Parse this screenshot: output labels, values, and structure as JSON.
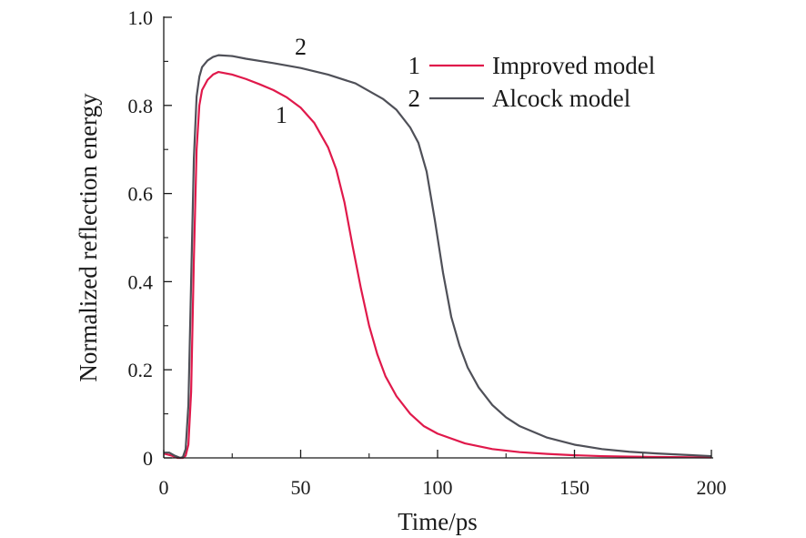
{
  "chart_data": {
    "type": "line",
    "xlabel": "Time/ps",
    "ylabel": "Normalized reflection energy",
    "xlim": [
      0,
      200
    ],
    "ylim": [
      0,
      1.0
    ],
    "x_ticks": [
      0,
      50,
      100,
      150,
      200
    ],
    "y_ticks": [
      0,
      0.2,
      0.4,
      0.6,
      0.8,
      1.0
    ],
    "x_tick_labels": [
      "0",
      "50",
      "100",
      "150",
      "200"
    ],
    "y_tick_labels": [
      "0",
      "0.2",
      "0.4",
      "0.6",
      "0.8",
      "1.0"
    ],
    "grid": false,
    "legend_position": "top-right",
    "series": [
      {
        "id": "1",
        "name": "Improved model",
        "color": "#e0194b",
        "curve_label": "1",
        "points": [
          [
            0,
            0.01
          ],
          [
            3,
            0.005
          ],
          [
            5,
            0.0
          ],
          [
            7,
            0.0
          ],
          [
            8,
            0.005
          ],
          [
            9,
            0.03
          ],
          [
            10,
            0.15
          ],
          [
            11,
            0.45
          ],
          [
            12,
            0.7
          ],
          [
            13,
            0.8
          ],
          [
            14,
            0.835
          ],
          [
            16,
            0.858
          ],
          [
            18,
            0.87
          ],
          [
            20,
            0.876
          ],
          [
            25,
            0.87
          ],
          [
            30,
            0.86
          ],
          [
            35,
            0.848
          ],
          [
            40,
            0.835
          ],
          [
            45,
            0.818
          ],
          [
            50,
            0.795
          ],
          [
            55,
            0.76
          ],
          [
            60,
            0.705
          ],
          [
            63,
            0.655
          ],
          [
            66,
            0.58
          ],
          [
            69,
            0.48
          ],
          [
            72,
            0.385
          ],
          [
            75,
            0.3
          ],
          [
            78,
            0.235
          ],
          [
            81,
            0.185
          ],
          [
            85,
            0.14
          ],
          [
            90,
            0.1
          ],
          [
            95,
            0.072
          ],
          [
            100,
            0.055
          ],
          [
            110,
            0.033
          ],
          [
            120,
            0.02
          ],
          [
            130,
            0.013
          ],
          [
            140,
            0.009
          ],
          [
            150,
            0.006
          ],
          [
            160,
            0.004
          ],
          [
            170,
            0.003
          ],
          [
            180,
            0.002
          ],
          [
            190,
            0.0015
          ],
          [
            200,
            0.001
          ]
        ]
      },
      {
        "id": "2",
        "name": "Alcock model",
        "color": "#4f5058",
        "curve_label": "2",
        "points": [
          [
            0,
            0.012
          ],
          [
            2,
            0.012
          ],
          [
            4,
            0.005
          ],
          [
            6,
            0.0
          ],
          [
            7,
            0.002
          ],
          [
            8,
            0.02
          ],
          [
            9,
            0.12
          ],
          [
            10,
            0.4
          ],
          [
            11,
            0.68
          ],
          [
            12,
            0.82
          ],
          [
            13,
            0.865
          ],
          [
            14,
            0.887
          ],
          [
            16,
            0.902
          ],
          [
            18,
            0.91
          ],
          [
            20,
            0.914
          ],
          [
            25,
            0.912
          ],
          [
            30,
            0.906
          ],
          [
            40,
            0.896
          ],
          [
            50,
            0.885
          ],
          [
            60,
            0.87
          ],
          [
            70,
            0.85
          ],
          [
            80,
            0.815
          ],
          [
            85,
            0.79
          ],
          [
            90,
            0.75
          ],
          [
            93,
            0.715
          ],
          [
            96,
            0.65
          ],
          [
            99,
            0.54
          ],
          [
            102,
            0.42
          ],
          [
            105,
            0.32
          ],
          [
            108,
            0.255
          ],
          [
            111,
            0.205
          ],
          [
            115,
            0.16
          ],
          [
            120,
            0.12
          ],
          [
            125,
            0.092
          ],
          [
            130,
            0.072
          ],
          [
            140,
            0.046
          ],
          [
            150,
            0.03
          ],
          [
            160,
            0.02
          ],
          [
            170,
            0.014
          ],
          [
            180,
            0.01
          ],
          [
            190,
            0.007
          ],
          [
            200,
            0.004
          ]
        ]
      }
    ],
    "annotations": [
      {
        "text": "1",
        "x": 43,
        "y": 0.76,
        "series": "1"
      },
      {
        "text": "2",
        "x": 50,
        "y": 0.915,
        "series": "2"
      }
    ]
  }
}
